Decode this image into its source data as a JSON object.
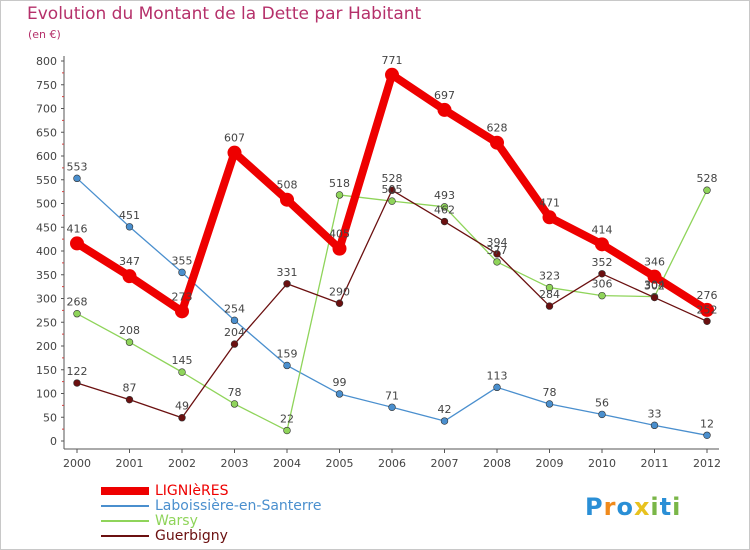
{
  "title": "Evolution du Montant de la Dette par Habitant",
  "subtitle": "(en €)",
  "logo": {
    "text": "Proxiti",
    "colors": [
      "#2a8fd6",
      "#f08a1c",
      "#2a8fd6",
      "#e8c21f",
      "#7ab648",
      "#2a8fd6",
      "#7ab648"
    ]
  },
  "chart_data": {
    "type": "line",
    "title": "Evolution du Montant de la Dette par Habitant",
    "ylabel": "(en €)",
    "x": [
      "2000",
      "2001",
      "2002",
      "2003",
      "2004",
      "2005",
      "2006",
      "2007",
      "2008",
      "2009",
      "2010",
      "2011",
      "2012"
    ],
    "ylim": [
      0,
      800
    ],
    "yticks": [
      0,
      50,
      100,
      150,
      200,
      250,
      300,
      350,
      400,
      450,
      500,
      550,
      600,
      650,
      700,
      750,
      800
    ],
    "grid": false,
    "legend_position": "bottom-left",
    "series": [
      {
        "name": "LIGNIèRES",
        "color": "#ee0000",
        "emphasis": true,
        "values": [
          416,
          347,
          273,
          607,
          508,
          405,
          771,
          697,
          628,
          471,
          414,
          346,
          276
        ]
      },
      {
        "name": "Laboissière-en-Santerre",
        "color": "#4a8fce",
        "emphasis": false,
        "values": [
          553,
          451,
          355,
          254,
          159,
          99,
          71,
          42,
          113,
          78,
          56,
          33,
          12
        ]
      },
      {
        "name": "Warsy",
        "color": "#8fd45a",
        "emphasis": false,
        "values": [
          268,
          208,
          145,
          78,
          22,
          518,
          505,
          493,
          377,
          323,
          306,
          304,
          528
        ]
      },
      {
        "name": "Guerbigny",
        "color": "#6b1010",
        "emphasis": false,
        "values": [
          122,
          87,
          49,
          204,
          331,
          290,
          528,
          462,
          394,
          284,
          352,
          302,
          252
        ]
      }
    ]
  }
}
